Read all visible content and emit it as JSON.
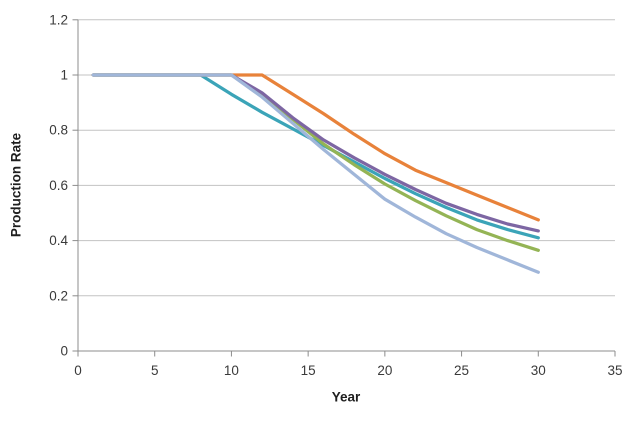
{
  "chart_data": {
    "type": "line",
    "title": "",
    "xlabel": "Year",
    "ylabel": "Production Rate",
    "xlim": [
      0,
      35
    ],
    "ylim": [
      0,
      1.2
    ],
    "xticks": [
      0,
      5,
      10,
      15,
      20,
      25,
      30,
      35
    ],
    "xtick_labels": [
      "0",
      "5",
      "10",
      "15",
      "20",
      "25",
      "30",
      "35"
    ],
    "yticks": [
      0,
      0.2,
      0.4,
      0.6,
      0.8,
      1,
      1.2
    ],
    "ytick_labels": [
      "0",
      "0.2",
      "0.4",
      "0.6",
      "0.8",
      "1",
      "1.2"
    ],
    "grid": "horizontal-only",
    "legend": "none",
    "grid_color": "#c3c3c3",
    "axis_color": "#8c8c8c",
    "tick_text_color": "#3a3a3a",
    "series": [
      {
        "color_name": "teal",
        "color": "#3BA4B8",
        "x": [
          1,
          8,
          10,
          12,
          14,
          16,
          18,
          20,
          22,
          24,
          26,
          28,
          30
        ],
        "y": [
          1,
          1,
          0.93,
          0.865,
          0.805,
          0.745,
          0.685,
          0.625,
          0.57,
          0.52,
          0.475,
          0.44,
          0.41
        ]
      },
      {
        "color_name": "orange",
        "color": "#E8823A",
        "x": [
          1,
          10,
          12,
          14,
          16,
          18,
          20,
          22,
          24,
          26,
          28,
          30
        ],
        "y": [
          1,
          1,
          1,
          0.93,
          0.86,
          0.785,
          0.715,
          0.655,
          0.61,
          0.565,
          0.52,
          0.475
        ]
      },
      {
        "color_name": "green",
        "color": "#94B455",
        "x": [
          1,
          10,
          12,
          14,
          16,
          18,
          20,
          22,
          24,
          26,
          28,
          30
        ],
        "y": [
          1,
          1,
          0.93,
          0.84,
          0.75,
          0.675,
          0.605,
          0.545,
          0.49,
          0.44,
          0.4,
          0.365
        ]
      },
      {
        "color_name": "purple",
        "color": "#7D66A3",
        "x": [
          1,
          10,
          12,
          14,
          16,
          18,
          20,
          22,
          24,
          26,
          28,
          30
        ],
        "y": [
          1,
          1,
          0.935,
          0.845,
          0.765,
          0.7,
          0.64,
          0.585,
          0.535,
          0.495,
          0.46,
          0.435
        ]
      },
      {
        "color_name": "light-blue",
        "color": "#A0B6D9",
        "x": [
          1,
          10,
          12,
          14,
          16,
          18,
          20,
          22,
          24,
          26,
          28,
          30
        ],
        "y": [
          1,
          1,
          0.92,
          0.825,
          0.73,
          0.64,
          0.55,
          0.485,
          0.425,
          0.375,
          0.33,
          0.285
        ]
      }
    ]
  }
}
